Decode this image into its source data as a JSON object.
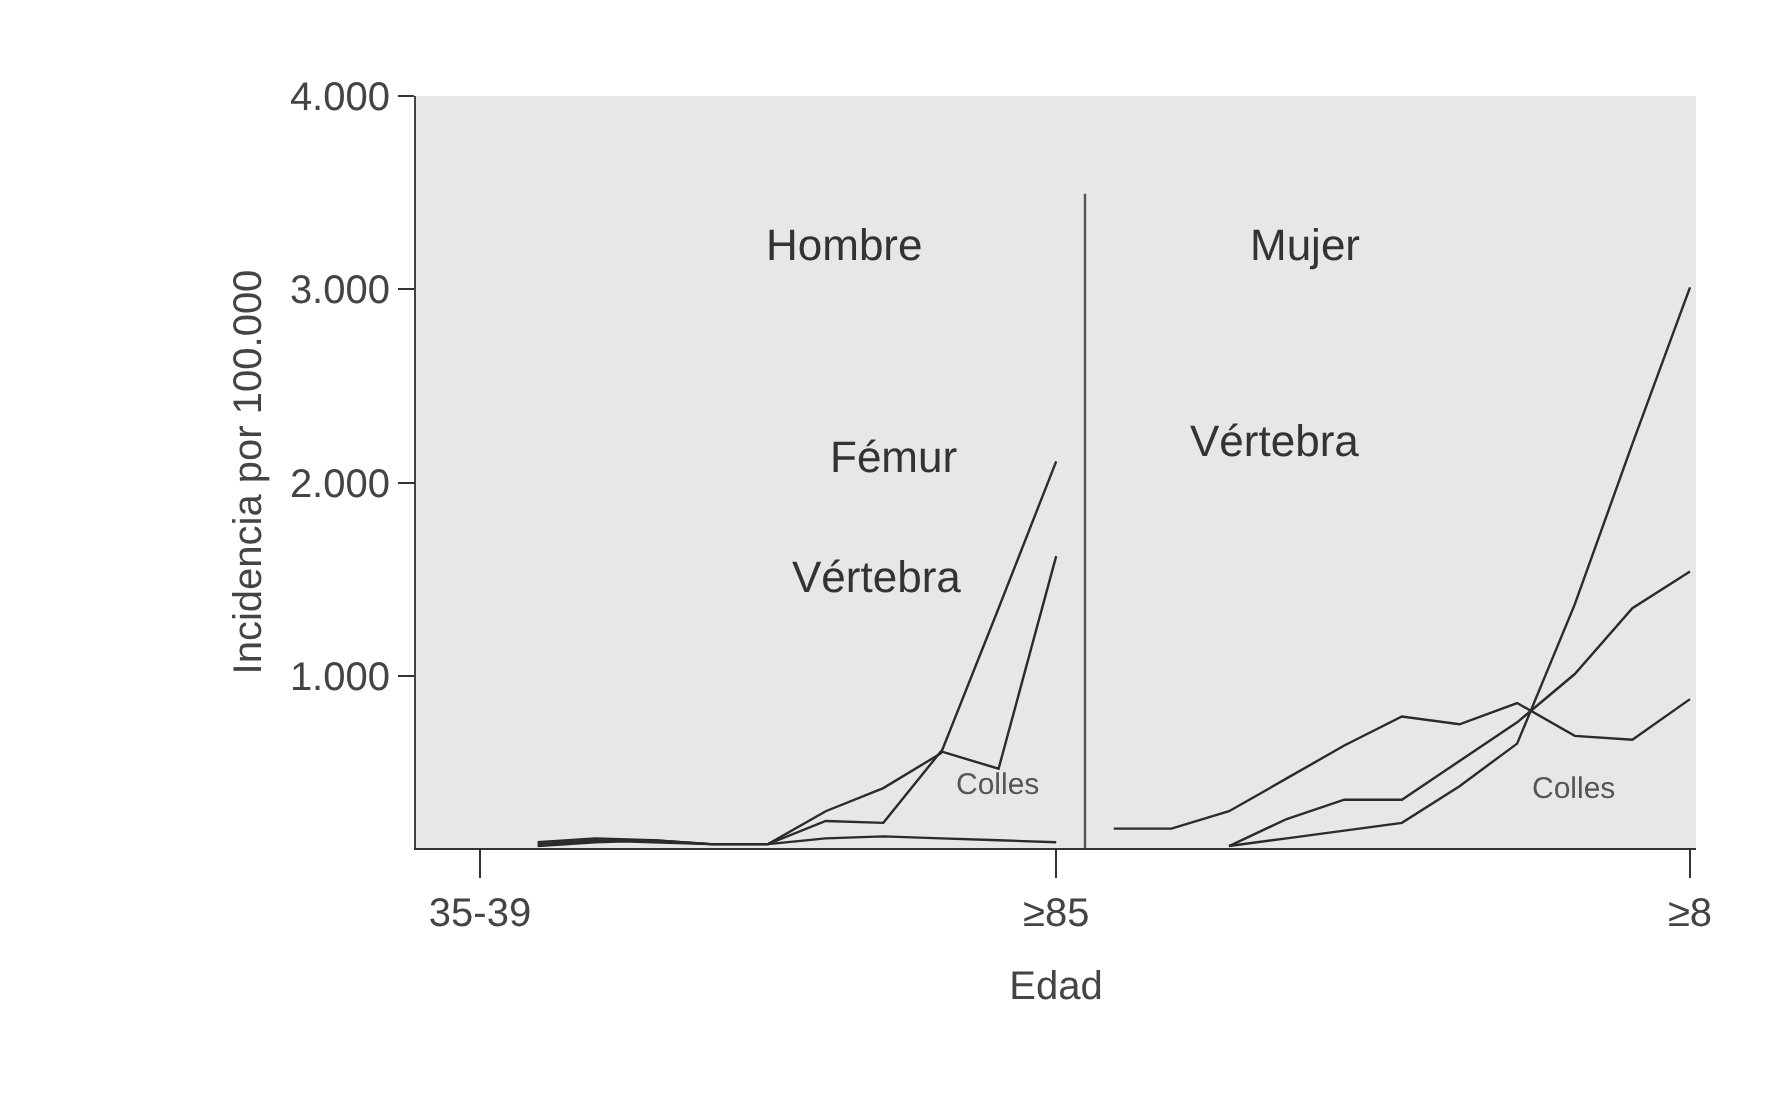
{
  "chart_data": {
    "type": "line",
    "ylabel": "Incidencia por 100.000",
    "xlabel": "Edad",
    "categories": [
      "35-39",
      null,
      null,
      null,
      null,
      null,
      null,
      null,
      null,
      null,
      "≥85",
      null,
      null,
      null,
      null,
      null,
      null,
      null,
      null,
      null,
      null,
      "≥8"
    ],
    "series": [
      {
        "color": "#2b2b2b",
        "values": [
          null,
          140,
          160,
          150,
          130,
          130,
          300,
          420,
          600,
          1350,
          2110,
          null,
          null,
          null,
          null,
          null,
          null,
          null,
          null,
          null,
          null,
          null
        ]
      },
      {
        "color": "#2b2b2b",
        "values": [
          null,
          120,
          140,
          150,
          130,
          130,
          250,
          240,
          610,
          520,
          1620,
          null,
          null,
          null,
          null,
          null,
          null,
          null,
          null,
          null,
          null,
          null
        ]
      },
      {
        "color": "#2b2b2b",
        "values": [
          null,
          130,
          150,
          140,
          130,
          130,
          160,
          170,
          160,
          150,
          140,
          null,
          null,
          null,
          null,
          null,
          null,
          null,
          null,
          null,
          null,
          null
        ]
      },
      {
        "color": "#2b2b2b",
        "values": [
          null,
          null,
          null,
          null,
          null,
          null,
          null,
          null,
          null,
          null,
          null,
          null,
          null,
          120,
          160,
          200,
          240,
          430,
          650,
          1370,
          2200,
          3010
        ]
      },
      {
        "color": "#2b2b2b",
        "values": [
          null,
          null,
          null,
          null,
          null,
          null,
          null,
          null,
          null,
          null,
          null,
          null,
          null,
          120,
          260,
          360,
          360,
          560,
          760,
          1010,
          1350,
          1540
        ]
      },
      {
        "color": "#2b2b2b",
        "values": [
          null,
          null,
          null,
          null,
          null,
          null,
          null,
          null,
          null,
          null,
          null,
          210,
          210,
          300,
          470,
          640,
          790,
          750,
          860,
          690,
          670,
          880
        ]
      }
    ],
    "ylim": [
      110,
      4000
    ],
    "yticks": [
      {
        "value": 1000,
        "label": "1.000"
      },
      {
        "value": 2000,
        "label": "2.000"
      },
      {
        "value": 3000,
        "label": "3.000"
      },
      {
        "value": 4000,
        "label": "4.000"
      }
    ],
    "annotations": [
      "Hombre",
      "Fémur",
      "Vértebra",
      "Colles",
      "Mujer",
      "Vértebra",
      "Colles"
    ]
  }
}
